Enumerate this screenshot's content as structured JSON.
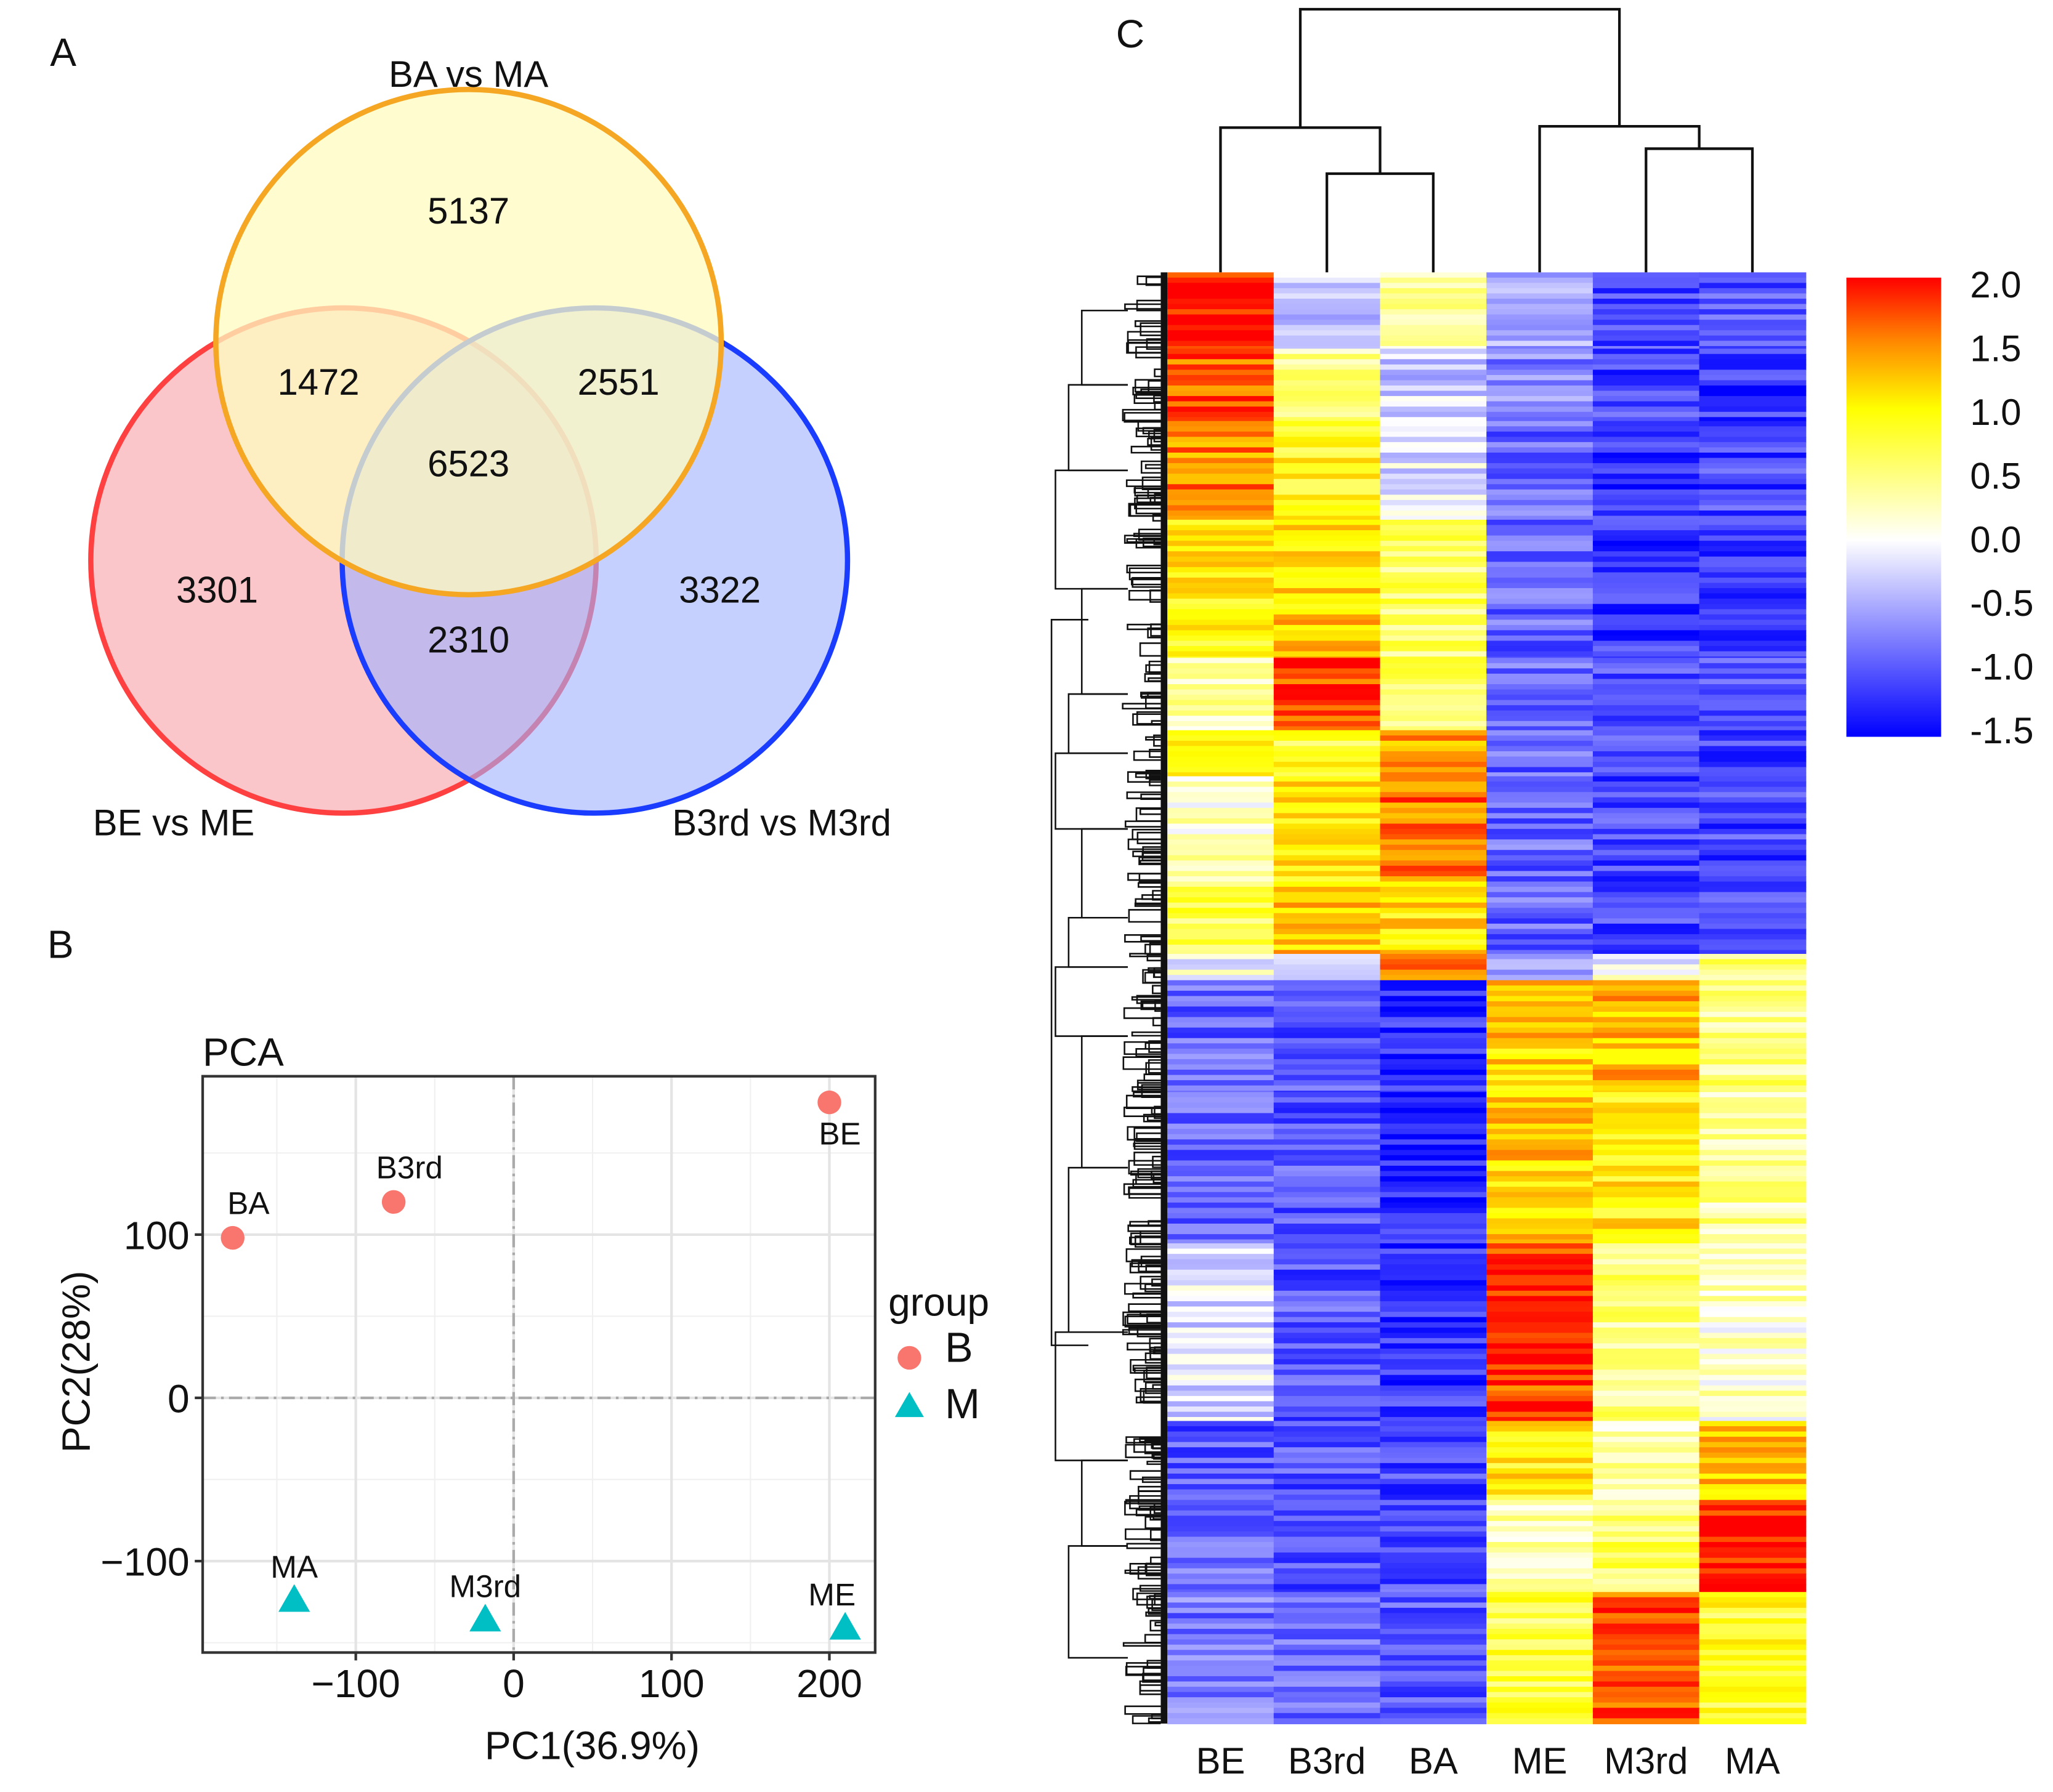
{
  "panel_labels": {
    "a": "A",
    "b": "B",
    "c": "C"
  },
  "chart_data": [
    {
      "type": "venn",
      "sets": [
        {
          "name": "BA vs MA",
          "color": "#f5a623",
          "fill": "#fffcc0"
        },
        {
          "name": "BE vs ME",
          "color": "#ff4040",
          "fill": "#f7a0a6"
        },
        {
          "name": "B3rd vs M3rd",
          "color": "#1a3cff",
          "fill": "#9fb0ff"
        }
      ],
      "regions": {
        "BA_only": "5137",
        "BE_only": "3301",
        "B3rd_only": "3322",
        "BA_BE": "1472",
        "BA_B3rd": "2551",
        "BE_B3rd": "2310",
        "all": "6523"
      }
    },
    {
      "type": "scatter",
      "title": "PCA",
      "xlabel": "PC1(36.9%)",
      "ylabel": "PC2(28%)",
      "xlim": [
        -197,
        229
      ],
      "ylim": [
        -156,
        197
      ],
      "xticks": [
        -100,
        0,
        100,
        200
      ],
      "yticks": [
        -100,
        0,
        100
      ],
      "xtick_labels": [
        "−100",
        "0",
        "100",
        "200"
      ],
      "ytick_labels": [
        "−100",
        "0",
        "100"
      ],
      "grid": true,
      "legend": {
        "title": "group",
        "placement": "right",
        "entries": [
          {
            "name": "B",
            "shape": "circle",
            "color": "#f8766d"
          },
          {
            "name": "M",
            "shape": "triangle",
            "color": "#00bfc4"
          }
        ]
      },
      "points": [
        {
          "label": "BA",
          "group": "B",
          "x": -178,
          "y": 98
        },
        {
          "label": "B3rd",
          "group": "B",
          "x": -76,
          "y": 120
        },
        {
          "label": "BE",
          "group": "B",
          "x": 200,
          "y": 181
        },
        {
          "label": "MA",
          "group": "M",
          "x": -139,
          "y": -123
        },
        {
          "label": "M3rd",
          "group": "M",
          "x": -18,
          "y": -135
        },
        {
          "label": "ME",
          "group": "M",
          "x": 210,
          "y": -140
        }
      ]
    },
    {
      "type": "heatmap",
      "columns": [
        "BE",
        "B3rd",
        "BA",
        "ME",
        "M3rd",
        "MA"
      ],
      "column_dendrogram": {
        "merges": [
          {
            "left": "B3rd",
            "right": "BA",
            "height": 0.375
          },
          {
            "left": "BE",
            "right": "B3rd+BA",
            "height": 0.55
          },
          {
            "left": "M3rd",
            "right": "MA",
            "height": 0.47
          },
          {
            "left": "ME",
            "right": "M3rd+MA",
            "height": 0.555
          },
          {
            "left": "BE+B3rd+BA",
            "right": "ME+M3rd+MA",
            "height": 1.0
          }
        ]
      },
      "colorbar": {
        "ticks": [
          "2.0",
          "1.5",
          "1.0",
          "0.5",
          "0.0",
          "-0.5",
          "-1.0",
          "-1.5"
        ],
        "range": [
          -1.5,
          2.0
        ],
        "stops": [
          {
            "v": -1.5,
            "c": "#0000ff"
          },
          {
            "v": 0.0,
            "c": "#ffffff"
          },
          {
            "v": 1.0,
            "c": "#ffff00"
          },
          {
            "v": 1.5,
            "c": "#ff8c00"
          },
          {
            "v": 2.0,
            "c": "#ff0000"
          }
        ]
      },
      "row_blocks": [
        {
          "rows": 58,
          "values": [
            2.0,
            -0.3,
            0.3,
            -0.5,
            -1.1,
            -1.0
          ]
        },
        {
          "rows": 55,
          "values": [
            1.7,
            0.4,
            -0.3,
            -0.7,
            -1.1,
            -1.2
          ]
        },
        {
          "rows": 75,
          "values": [
            1.5,
            0.9,
            -0.2,
            -0.9,
            -1.2,
            -1.1
          ]
        },
        {
          "rows": 105,
          "values": [
            1.0,
            1.2,
            0.6,
            -0.9,
            -1.2,
            -1.1
          ]
        },
        {
          "rows": 55,
          "values": [
            0.3,
            1.8,
            0.6,
            -0.9,
            -1.0,
            -1.0
          ]
        },
        {
          "rows": 35,
          "values": [
            0.8,
            0.8,
            1.4,
            -0.9,
            -1.1,
            -1.1
          ]
        },
        {
          "rows": 80,
          "values": [
            0.2,
            1.1,
            1.6,
            -0.9,
            -1.1,
            -1.1
          ]
        },
        {
          "rows": 55,
          "values": [
            0.7,
            1.2,
            1.1,
            -0.9,
            -1.1,
            -1.1
          ]
        },
        {
          "rows": 20,
          "values": [
            0.0,
            0.0,
            1.6,
            -0.5,
            0.0,
            0.5
          ]
        },
        {
          "rows": 85,
          "values": [
            -0.9,
            -1.0,
            -1.2,
            1.2,
            1.3,
            0.5
          ]
        },
        {
          "rows": 115,
          "values": [
            -0.9,
            -1.0,
            -1.3,
            1.2,
            1.0,
            0.4
          ]
        },
        {
          "rows": 135,
          "values": [
            -0.2,
            -1.0,
            -1.2,
            1.8,
            0.5,
            0.2
          ]
        },
        {
          "rows": 60,
          "values": [
            -1.0,
            -1.0,
            -1.1,
            1.0,
            0.3,
            1.2
          ]
        },
        {
          "rows": 70,
          "values": [
            -0.9,
            -1.0,
            -1.0,
            0.3,
            0.6,
            1.9
          ]
        },
        {
          "rows": 100,
          "values": [
            -0.8,
            -0.9,
            -1.0,
            0.7,
            1.7,
            0.8
          ]
        }
      ]
    }
  ]
}
